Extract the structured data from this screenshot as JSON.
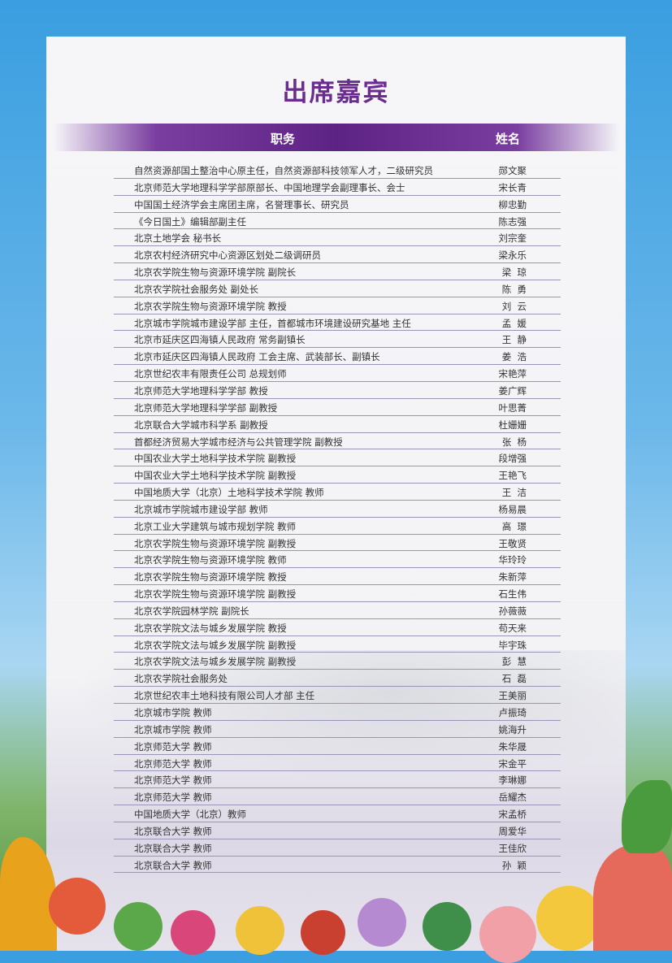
{
  "title": "出席嘉宾",
  "header": {
    "position": "职务",
    "name": "姓名"
  },
  "colors": {
    "accent": "#6a2d8f",
    "sky": "#3a9ee0"
  },
  "guests": [
    {
      "position": "自然资源部国土整治中心原主任，自然资源部科技领军人才，二级研究员",
      "name": "郧文聚"
    },
    {
      "position": "北京师范大学地理科学学部原部长、中国地理学会副理事长、会士",
      "name": "宋长青"
    },
    {
      "position": "中国国土经济学会主席团主席，名誉理事长、研究员",
      "name": "柳忠勤"
    },
    {
      "position": "《今日国土》编辑部副主任",
      "name": "陈志强"
    },
    {
      "position": "北京土地学会 秘书长",
      "name": "刘宗奎"
    },
    {
      "position": "北京农村经济研究中心资源区划处二级调研员",
      "name": "梁永乐"
    },
    {
      "position": "北京农学院生物与资源环境学院 副院长",
      "name": "梁  琼"
    },
    {
      "position": "北京农学院社会服务处 副处长",
      "name": "陈  勇"
    },
    {
      "position": "北京农学院生物与资源环境学院 教授",
      "name": "刘  云"
    },
    {
      "position": "北京城市学院城市建设学部 主任，首都城市环境建设研究基地 主任",
      "name": "孟  媛"
    },
    {
      "position": "北京市延庆区四海镇人民政府 常务副镇长",
      "name": "王  静"
    },
    {
      "position": "北京市延庆区四海镇人民政府 工会主席、武装部长、副镇长",
      "name": "姜  浩"
    },
    {
      "position": "北京世纪农丰有限责任公司 总规划师",
      "name": "宋艳萍"
    },
    {
      "position": "北京师范大学地理科学学部 教授",
      "name": "姜广辉"
    },
    {
      "position": "北京师范大学地理科学学部 副教授",
      "name": "叶思菁"
    },
    {
      "position": "北京联合大学城市科学系 副教授",
      "name": "杜姗姗"
    },
    {
      "position": "首都经济贸易大学城市经济与公共管理学院 副教授",
      "name": "张  杨"
    },
    {
      "position": "中国农业大学土地科学技术学院 副教授",
      "name": "段增强"
    },
    {
      "position": "中国农业大学土地科学技术学院 副教授",
      "name": "王艳飞"
    },
    {
      "position": "中国地质大学（北京）土地科学技术学院 教师",
      "name": "王  洁"
    },
    {
      "position": "北京城市学院城市建设学部 教师",
      "name": "杨易晨"
    },
    {
      "position": "北京工业大学建筑与城市规划学院 教师",
      "name": "高  璟"
    },
    {
      "position": "北京农学院生物与资源环境学院 副教授",
      "name": "王敬贤"
    },
    {
      "position": "北京农学院生物与资源环境学院 教师",
      "name": "华玲玲"
    },
    {
      "position": "北京农学院生物与资源环境学院 教授",
      "name": "朱新萍"
    },
    {
      "position": "北京农学院生物与资源环境学院 副教授",
      "name": "石生伟"
    },
    {
      "position": "北京农学院园林学院  副院长",
      "name": "孙薇薇"
    },
    {
      "position": "北京农学院文法与城乡发展学院 教授",
      "name": "苟天来"
    },
    {
      "position": "北京农学院文法与城乡发展学院 副教授",
      "name": "毕宇珠"
    },
    {
      "position": "北京农学院文法与城乡发展学院 副教授",
      "name": "彭  慧"
    },
    {
      "position": "北京农学院社会服务处",
      "name": "石  磊"
    },
    {
      "position": "北京世纪农丰土地科技有限公司人才部 主任",
      "name": "王美丽"
    },
    {
      "position": "北京城市学院  教师",
      "name": "卢振琦"
    },
    {
      "position": "北京城市学院  教师",
      "name": "姚海升"
    },
    {
      "position": "北京师范大学  教师",
      "name": "朱华晟"
    },
    {
      "position": "北京师范大学  教师",
      "name": "宋金平"
    },
    {
      "position": "北京师范大学  教师",
      "name": "李琳娜"
    },
    {
      "position": "北京师范大学  教师",
      "name": "岳耀杰"
    },
    {
      "position": "中国地质大学（北京）教师",
      "name": "宋孟桥"
    },
    {
      "position": "北京联合大学 教师",
      "name": "周爱华"
    },
    {
      "position": "北京联合大学 教师",
      "name": "王佳欣"
    },
    {
      "position": "北京联合大学 教师",
      "name": "孙  颖"
    }
  ]
}
